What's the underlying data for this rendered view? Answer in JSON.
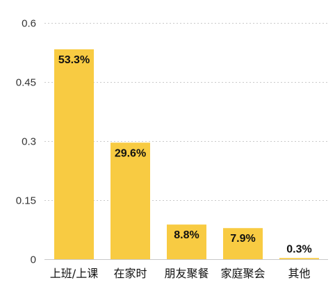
{
  "chart_data": {
    "type": "bar",
    "categories": [
      "上班/上课",
      "在家时",
      "朋友聚餐",
      "家庭聚会",
      "其他"
    ],
    "values": [
      0.533,
      0.296,
      0.088,
      0.079,
      0.003
    ],
    "data_labels": [
      "53.3%",
      "29.6%",
      "8.8%",
      "7.9%",
      "0.3%"
    ],
    "yticks": [
      0,
      0.15,
      0.3,
      0.45,
      0.6
    ],
    "ytick_labels": [
      "0",
      "0.15",
      "0.3",
      "0.45",
      "0.6"
    ],
    "ylim": [
      0,
      0.6
    ],
    "grid": true,
    "legend": "none",
    "bar_color": "#F8CB42"
  }
}
